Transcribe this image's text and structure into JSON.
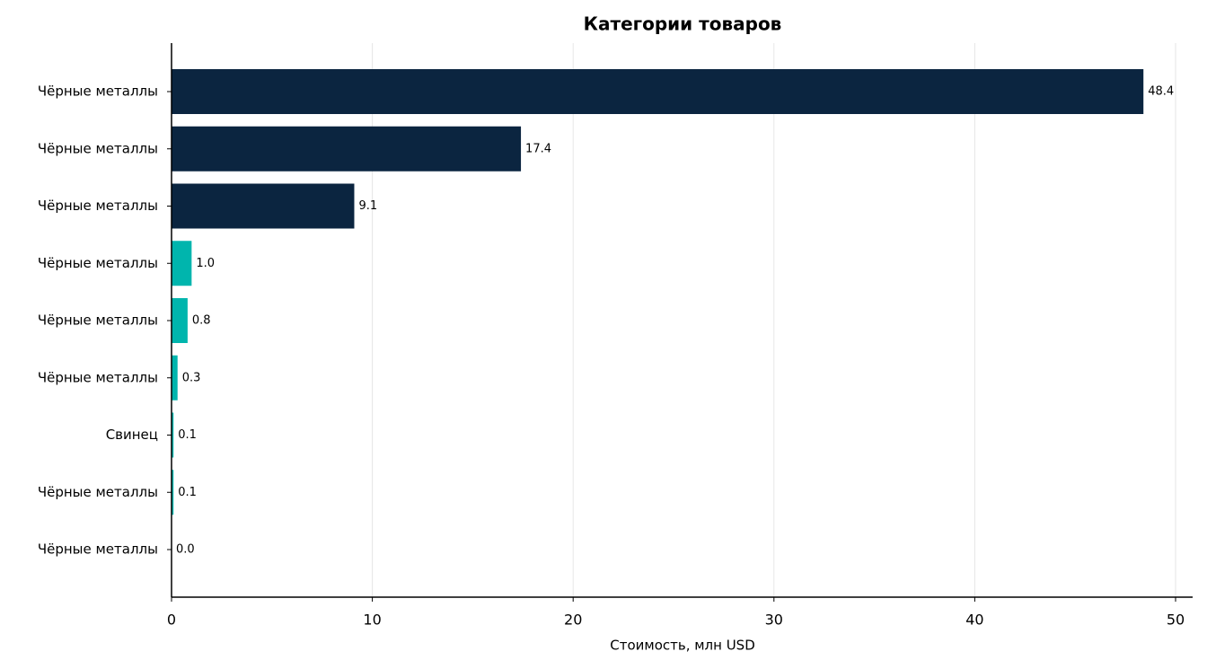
{
  "chart_data": {
    "type": "barh",
    "title": "Категории товаров",
    "xlabel": "Стоимость, млн USD",
    "categories": [
      "Чёрные металлы",
      "Чёрные металлы",
      "Чёрные металлы",
      "Чёрные металлы",
      "Чёрные металлы",
      "Чёрные металлы",
      "Свинец",
      "Чёрные металлы",
      "Чёрные металлы"
    ],
    "values": [
      48.4,
      17.4,
      9.1,
      1.0,
      0.8,
      0.3,
      0.1,
      0.1,
      0.0
    ],
    "value_labels": [
      "48.4",
      "17.4",
      "9.1",
      "1.0",
      "0.8",
      "0.3",
      "0.1",
      "0.1",
      "0.0"
    ],
    "colors": [
      "#0b2540",
      "#0b2540",
      "#0b2540",
      "#00b5ad",
      "#00b5ad",
      "#00b5ad",
      "#00b5ad",
      "#00b5ad",
      "#00b5ad"
    ],
    "xlim": [
      0,
      50.85
    ],
    "xticks": [
      0,
      10,
      20,
      30,
      40,
      50
    ],
    "grid": true
  }
}
